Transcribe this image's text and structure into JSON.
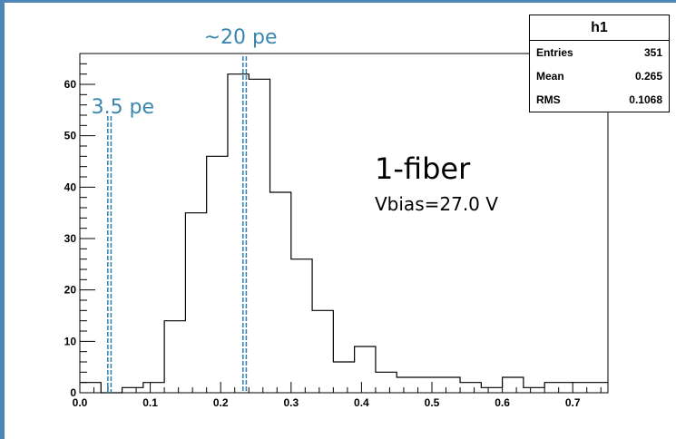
{
  "chart_data": {
    "type": "histogram",
    "title": "",
    "xlabel": "",
    "ylabel": "",
    "xlim": [
      0.0,
      0.75
    ],
    "ylim": [
      0,
      66
    ],
    "bin_edges": [
      0.0,
      0.03,
      0.06,
      0.09,
      0.12,
      0.15,
      0.18,
      0.21,
      0.24,
      0.27,
      0.3,
      0.33,
      0.36,
      0.39,
      0.42,
      0.45,
      0.48,
      0.51,
      0.54,
      0.57,
      0.6,
      0.63,
      0.66,
      0.69,
      0.72,
      0.75
    ],
    "counts": [
      2,
      0,
      1,
      2,
      14,
      35,
      46,
      62,
      61,
      39,
      26,
      16,
      6,
      9,
      4,
      3,
      3,
      3,
      2,
      1,
      3,
      1,
      2,
      2,
      2
    ],
    "x_ticks": [
      "0.0",
      "0.1",
      "0.2",
      "0.3",
      "0.4",
      "0.5",
      "0.6",
      "0.7"
    ],
    "x_tick_values": [
      0.0,
      0.1,
      0.2,
      0.3,
      0.4,
      0.5,
      0.6,
      0.7
    ],
    "y_ticks": [
      "0",
      "10",
      "20",
      "30",
      "40",
      "50",
      "60"
    ],
    "y_tick_values": [
      0,
      10,
      20,
      30,
      40,
      50,
      60
    ],
    "vlines": [
      {
        "x": 0.042,
        "label": "3.5 pe",
        "color": "#3a86b0"
      },
      {
        "x": 0.234,
        "label": "~20 pe",
        "color": "#3a86b0"
      }
    ],
    "annotations": [
      "1-fiber",
      "Vbias=27.0 V"
    ],
    "stats": {
      "title": "h1",
      "rows": [
        {
          "label": "Entries",
          "value": "351"
        },
        {
          "label": "Mean",
          "value": "0.265"
        },
        {
          "label": "RMS",
          "value": "0.1068"
        }
      ]
    },
    "line_color": "#000000",
    "frame_color": "#4f86b8"
  }
}
